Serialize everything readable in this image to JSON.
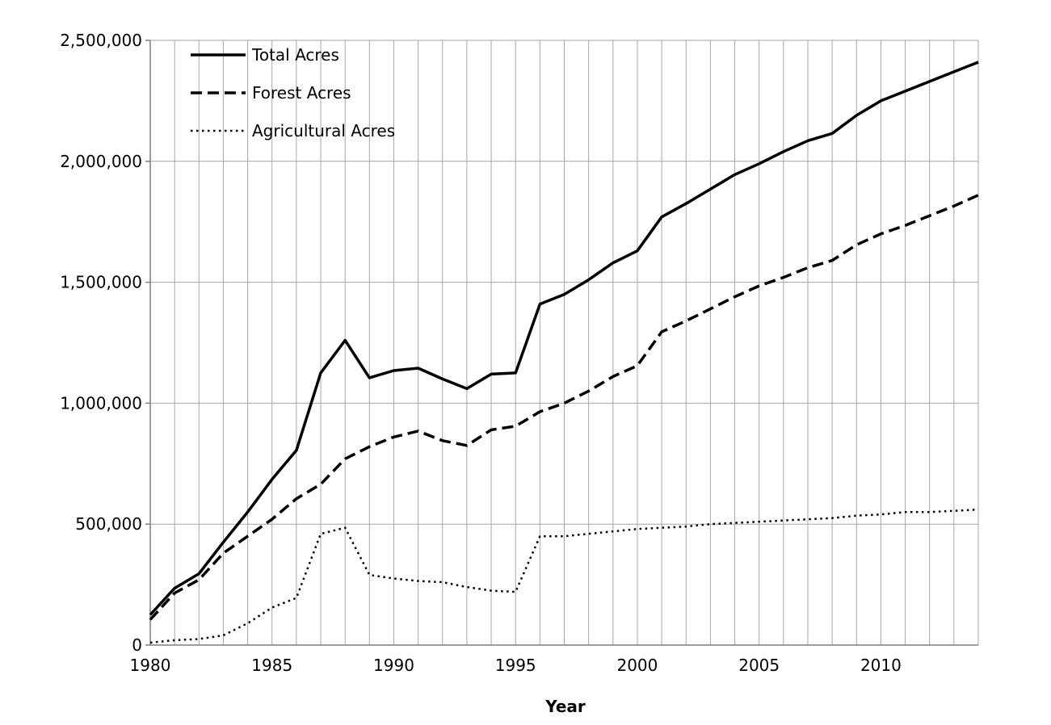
{
  "chart_data": {
    "type": "line",
    "title": "",
    "xlabel": "Year",
    "ylabel": "",
    "xlim": [
      1980,
      2014
    ],
    "ylim": [
      0,
      2500000
    ],
    "x_ticks": [
      1980,
      1985,
      1990,
      1995,
      2000,
      2005,
      2010
    ],
    "x_tick_labels": [
      "1980",
      "1985",
      "1990",
      "1995",
      "2000",
      "2005",
      "2010"
    ],
    "y_ticks": [
      0,
      500000,
      1000000,
      1500000,
      2000000,
      2500000
    ],
    "y_tick_labels": [
      "0",
      "500,000",
      "1,000,000",
      "1,500,000",
      "2,000,000",
      "2,500,000"
    ],
    "grid": {
      "vertical_every_year": true,
      "horizontal_at_y_ticks": true
    },
    "legend_position": "top-left",
    "x": [
      1980,
      1981,
      1982,
      1983,
      1984,
      1985,
      1986,
      1987,
      1988,
      1989,
      1990,
      1991,
      1992,
      1993,
      1994,
      1995,
      1996,
      1997,
      1998,
      1999,
      2000,
      2001,
      2002,
      2003,
      2004,
      2005,
      2006,
      2007,
      2008,
      2009,
      2010,
      2011,
      2012,
      2013,
      2014
    ],
    "series": [
      {
        "name": "Total Acres",
        "line_style": "solid",
        "color": "#000000",
        "values": [
          125000,
          235000,
          295000,
          425000,
          550000,
          685000,
          805000,
          1125000,
          1260000,
          1105000,
          1135000,
          1145000,
          1100000,
          1060000,
          1120000,
          1125000,
          1410000,
          1450000,
          1510000,
          1580000,
          1630000,
          1770000,
          1825000,
          1885000,
          1945000,
          1990000,
          2040000,
          2085000,
          2115000,
          2190000,
          2250000,
          2290000,
          2330000,
          2370000,
          2410000
        ]
      },
      {
        "name": "Forest Acres",
        "line_style": "dashed",
        "color": "#000000",
        "values": [
          105000,
          215000,
          270000,
          380000,
          450000,
          520000,
          605000,
          665000,
          770000,
          820000,
          860000,
          885000,
          845000,
          825000,
          890000,
          905000,
          965000,
          1000000,
          1050000,
          1110000,
          1155000,
          1295000,
          1340000,
          1390000,
          1440000,
          1485000,
          1520000,
          1560000,
          1590000,
          1655000,
          1700000,
          1735000,
          1775000,
          1815000,
          1860000
        ]
      },
      {
        "name": "Agricultural Acres",
        "line_style": "dotted",
        "color": "#000000",
        "values": [
          10000,
          20000,
          25000,
          40000,
          90000,
          155000,
          195000,
          460000,
          485000,
          290000,
          275000,
          265000,
          260000,
          240000,
          225000,
          220000,
          450000,
          450000,
          460000,
          470000,
          480000,
          485000,
          490000,
          500000,
          505000,
          510000,
          515000,
          520000,
          525000,
          535000,
          540000,
          550000,
          550000,
          555000,
          560000
        ]
      }
    ]
  }
}
